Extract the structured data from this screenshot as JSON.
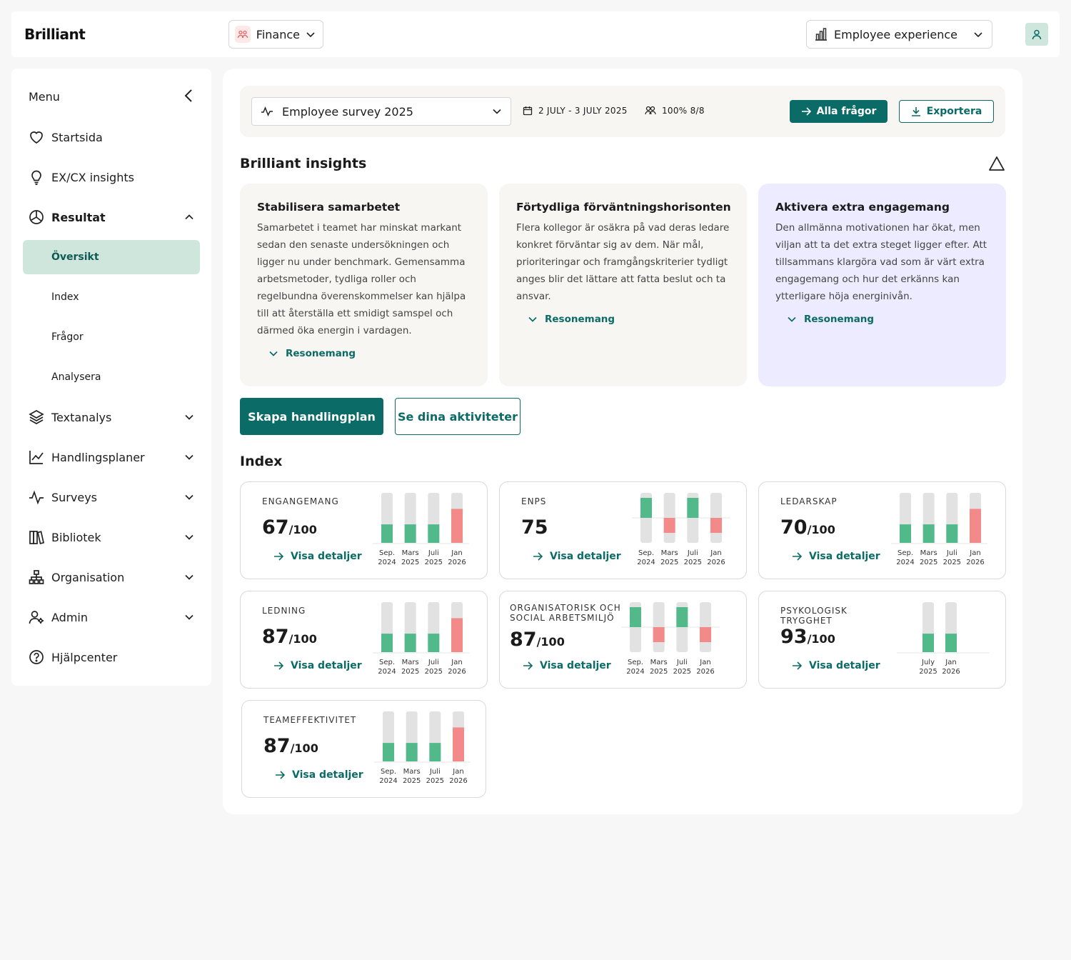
{
  "header": {
    "logo": "Brilliant",
    "department": "Finance",
    "experience": "Employee experience"
  },
  "sidebar": {
    "menu_title": "Menu",
    "items": [
      {
        "label": "Startsida",
        "icon": "heart-icon"
      },
      {
        "label": "EX/CX insights",
        "icon": "lightbulb-icon"
      },
      {
        "label": "Resultat",
        "icon": "pie-chart-icon"
      },
      {
        "label": "Textanalys",
        "icon": "layers-icon"
      },
      {
        "label": "Handlingsplaner",
        "icon": "line-chart-icon"
      },
      {
        "label": "Surveys",
        "icon": "activity-icon"
      },
      {
        "label": "Bibliotek",
        "icon": "books-icon"
      },
      {
        "label": "Organisation",
        "icon": "org-chart-icon"
      },
      {
        "label": "Admin",
        "icon": "user-gear-icon"
      },
      {
        "label": "Hjälpcenter",
        "icon": "help-circle-icon"
      }
    ],
    "sub_items": [
      "Översikt",
      "Index",
      "Frågor",
      "Analysera"
    ]
  },
  "survey": {
    "name": "Employee survey 2025",
    "dates": "2 JULY - 3 JULY 2025",
    "participation": "100% 8/8",
    "all_questions": "Alla frågor",
    "export": "Exportera"
  },
  "insights": {
    "title": "Brilliant insights",
    "reasoning_label": "Resonemang",
    "cards": [
      {
        "title": "Stabilisera samarbetet",
        "text": "Samarbetet i teamet har minskat markant sedan den senaste undersökningen och ligger nu under benchmark. Gemensamma arbetsmetoder, tydliga roller och regelbundna överenskommelser kan hjälpa till att återställa ett smidigt samspel och därmed öka energin i vardagen."
      },
      {
        "title": "Förtydliga förväntningshorisonten",
        "text": "Flera kollegor är osäkra på vad deras ledare konkret förväntar sig av dem. När mål, prioriteringar och framgångskriterier tydligt anges blir det lättare att fatta beslut och ta ansvar."
      },
      {
        "title": "Aktivera extra engagemang",
        "text": "Den allmänna motivationen har ökat, men viljan att ta det extra steget ligger efter. Att tillsammans klargöra vad som är värt extra engagemang och hur det erkänns kan ytterligare höja energinivån."
      }
    ]
  },
  "actions": {
    "create_plan": "Skapa handlingplan",
    "see_activities": "Se dina aktiviteter"
  },
  "index": {
    "title": "Index",
    "details_label": "Visa detaljer",
    "denominator": "/100",
    "cards": [
      {
        "label": "ENGANGEMANG",
        "score": "67",
        "show_den": true
      },
      {
        "label": "ENPS",
        "score": "75",
        "show_den": false
      },
      {
        "label": "LEDARSKAP",
        "score": "70",
        "show_den": true
      },
      {
        "label": "LEDNING",
        "score": "87",
        "show_den": true
      },
      {
        "label": "ORGANISATORISK OCH SOCIAL ARBETSMILJÖ",
        "score": "87",
        "show_den": true
      },
      {
        "label": "PSYKOLOGISK TRYGGHET",
        "score": "93",
        "show_den": true
      },
      {
        "label": "TEAMEFFEKTIVITET",
        "score": "87",
        "show_den": true
      }
    ]
  },
  "colors": {
    "accent": "#0b6b66",
    "positive": "#52b98b",
    "negative": "#f28a8a",
    "track": "#e2e2e2"
  },
  "chart_data": [
    {
      "type": "bar",
      "kind": "progress",
      "categories": [
        [
          "Sep.",
          "2024"
        ],
        [
          "Mars",
          "2025"
        ],
        [
          "Juli",
          "2025"
        ],
        [
          "Jan",
          "2026"
        ]
      ],
      "values": [
        0.37,
        0.37,
        0.37,
        0.68
      ],
      "status": [
        "pos",
        "pos",
        "pos",
        "neg"
      ]
    },
    {
      "type": "bar",
      "kind": "diverging",
      "categories": [
        [
          "Sep.",
          "2024"
        ],
        [
          "Mars",
          "2025"
        ],
        [
          "Juli",
          "2025"
        ],
        [
          "Jan",
          "2026"
        ]
      ],
      "values": [
        0.4,
        -0.3,
        0.4,
        -0.3
      ],
      "status": [
        "pos",
        "neg",
        "pos",
        "neg"
      ]
    },
    {
      "type": "bar",
      "kind": "progress",
      "categories": [
        [
          "Sep.",
          "2024"
        ],
        [
          "Mars",
          "2025"
        ],
        [
          "Juli",
          "2025"
        ],
        [
          "Jan",
          "2026"
        ]
      ],
      "values": [
        0.37,
        0.37,
        0.37,
        0.68
      ],
      "status": [
        "pos",
        "pos",
        "pos",
        "neg"
      ]
    },
    {
      "type": "bar",
      "kind": "progress",
      "categories": [
        [
          "Sep.",
          "2024"
        ],
        [
          "Mars",
          "2025"
        ],
        [
          "Juli",
          "2025"
        ],
        [
          "Jan",
          "2026"
        ]
      ],
      "values": [
        0.37,
        0.37,
        0.37,
        0.68
      ],
      "status": [
        "pos",
        "pos",
        "pos",
        "neg"
      ]
    },
    {
      "type": "bar",
      "kind": "diverging",
      "categories": [
        [
          "Sep.",
          "2024"
        ],
        [
          "Mars",
          "2025"
        ],
        [
          "Juli",
          "2025"
        ],
        [
          "Jan",
          "2026"
        ]
      ],
      "values": [
        0.4,
        -0.3,
        0.4,
        -0.3
      ],
      "status": [
        "pos",
        "neg",
        "pos",
        "neg"
      ]
    },
    {
      "type": "bar",
      "kind": "progress",
      "categories": [
        [
          "July",
          "2025"
        ],
        [
          "Jan",
          "2026"
        ]
      ],
      "values": [
        0.37,
        0.37
      ],
      "status": [
        "pos",
        "pos"
      ]
    },
    {
      "type": "bar",
      "kind": "progress",
      "categories": [
        [
          "Sep.",
          "2024"
        ],
        [
          "Mars",
          "2025"
        ],
        [
          "Juli",
          "2025"
        ],
        [
          "Jan",
          "2026"
        ]
      ],
      "values": [
        0.37,
        0.37,
        0.37,
        0.68
      ],
      "status": [
        "pos",
        "pos",
        "pos",
        "neg"
      ]
    }
  ]
}
